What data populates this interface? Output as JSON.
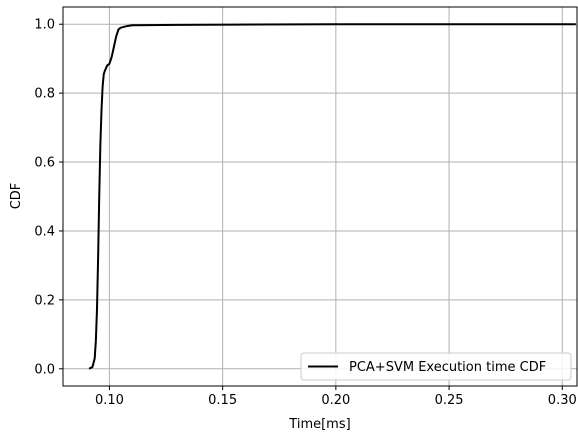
{
  "chart_data": {
    "type": "line",
    "xlabel": "Time[ms]",
    "ylabel": "CDF",
    "xlim": [
      0.0795,
      0.3065
    ],
    "ylim": [
      -0.05,
      1.05
    ],
    "xticks": [
      0.1,
      0.15,
      0.2,
      0.25,
      0.3
    ],
    "xtick_labels": [
      "0.10",
      "0.15",
      "0.20",
      "0.25",
      "0.30"
    ],
    "yticks": [
      0.0,
      0.2,
      0.4,
      0.6,
      0.8,
      1.0
    ],
    "ytick_labels": [
      "0.0",
      "0.2",
      "0.4",
      "0.6",
      "0.8",
      "1.0"
    ],
    "grid": true,
    "legend_position": "lower-right",
    "series": [
      {
        "name": "PCA+SVM Execution time CDF",
        "color": "#000000",
        "x": [
          0.091,
          0.0925,
          0.0935,
          0.094,
          0.0945,
          0.095,
          0.0955,
          0.096,
          0.0965,
          0.097,
          0.0975,
          0.098,
          0.099,
          0.1,
          0.101,
          0.102,
          0.103,
          0.104,
          0.105,
          0.108,
          0.11,
          0.13,
          0.155,
          0.2,
          0.25,
          0.3,
          0.306
        ],
        "y": [
          0.0,
          0.005,
          0.03,
          0.08,
          0.17,
          0.32,
          0.5,
          0.65,
          0.75,
          0.82,
          0.855,
          0.865,
          0.88,
          0.885,
          0.905,
          0.935,
          0.965,
          0.985,
          0.99,
          0.995,
          0.997,
          0.998,
          0.999,
          1.0,
          1.0,
          1.0,
          1.0
        ]
      }
    ]
  }
}
